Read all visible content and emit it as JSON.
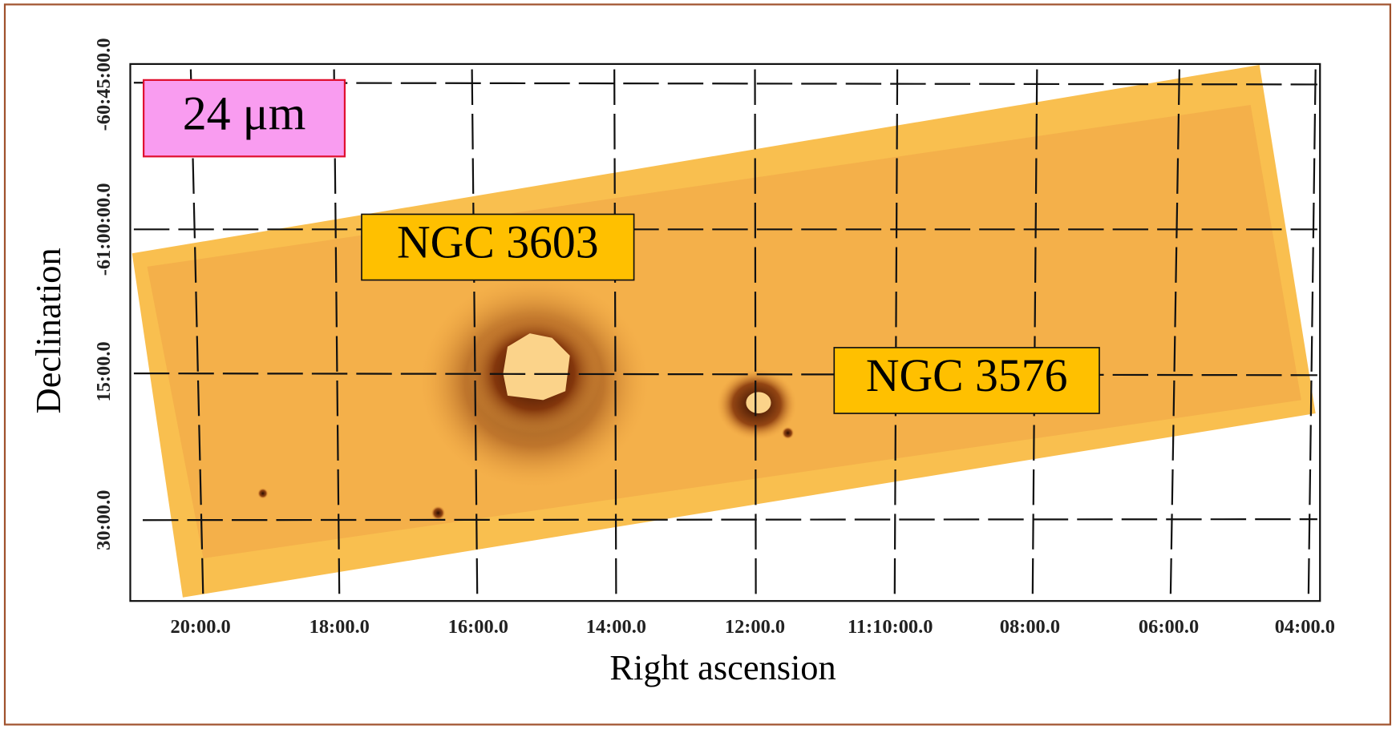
{
  "band_label": "24 μm",
  "annotations": [
    "NGC 3603",
    "NGC 3576"
  ],
  "x_axis": {
    "label": "Right ascension",
    "ticks": [
      "20:00.0",
      "18:00.0",
      "16:00.0",
      "14:00.0",
      "12:00.0",
      "11:10:00.0",
      "08:00.0",
      "06:00.0",
      "04:00.0"
    ]
  },
  "y_axis": {
    "label": "Declination",
    "ticks": [
      "-60:45:00.0",
      "-61:00:00.0",
      "15:00.0",
      "30:00.0"
    ]
  }
}
